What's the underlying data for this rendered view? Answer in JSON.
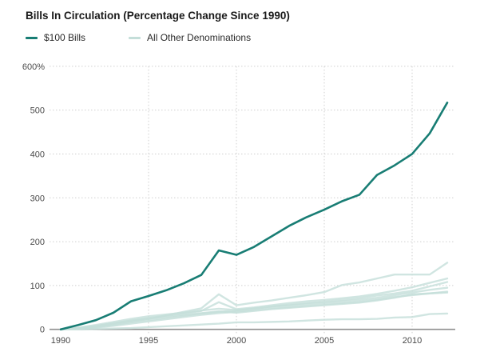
{
  "chart_data": {
    "type": "line",
    "title": "Bills In Circulation (Percentage Change Since 1990)",
    "xlabel": "",
    "ylabel": "",
    "xlim": [
      1990,
      2012.5
    ],
    "ylim": [
      0,
      600
    ],
    "grid": "dotted",
    "legend_position": "top-left",
    "xticks": [
      1990,
      1995,
      2000,
      2005,
      2010
    ],
    "yticks": [
      0,
      100,
      200,
      300,
      400,
      500,
      600
    ],
    "ytick_labels": [
      "0",
      "100",
      "200",
      "300",
      "400",
      "500",
      "600%"
    ],
    "x": [
      1990,
      1991,
      1992,
      1993,
      1994,
      1995,
      1996,
      1997,
      1998,
      1999,
      2000,
      2001,
      2002,
      2003,
      2004,
      2005,
      2006,
      2007,
      2008,
      2009,
      2010,
      2011,
      2012
    ],
    "legend": [
      {
        "label": "$100 Bills",
        "color": "#187d74"
      },
      {
        "label": "All Other Denominations",
        "color": "#c4ded9"
      }
    ],
    "series": [
      {
        "name": "$100 Bills",
        "color": "#187d74",
        "values": [
          0,
          10,
          21,
          38,
          64,
          76,
          89,
          105,
          124,
          180,
          170,
          188,
          212,
          236,
          256,
          273,
          292,
          307,
          352,
          374,
          400,
          447,
          517
        ]
      },
      {
        "name": "All Other Denominations",
        "color": "#c4ded9",
        "lines": [
          [
            0,
            2,
            6,
            12,
            18,
            24,
            32,
            40,
            48,
            80,
            55,
            61,
            66,
            72,
            78,
            85,
            101,
            107,
            116,
            125,
            125,
            125,
            152
          ],
          [
            0,
            3,
            8,
            14,
            20,
            26,
            31,
            36,
            42,
            62,
            46,
            50,
            55,
            60,
            64,
            67,
            71,
            75,
            81,
            88,
            96,
            106,
            116
          ],
          [
            0,
            2,
            5,
            10,
            16,
            21,
            26,
            31,
            36,
            40,
            43,
            47,
            52,
            56,
            60,
            63,
            67,
            71,
            77,
            82,
            88,
            98,
            108
          ],
          [
            0,
            4,
            10,
            17,
            24,
            30,
            34,
            38,
            43,
            47,
            44,
            48,
            52,
            55,
            58,
            61,
            64,
            67,
            72,
            78,
            84,
            90,
            95
          ],
          [
            0,
            1,
            4,
            8,
            13,
            18,
            23,
            28,
            33,
            37,
            40,
            44,
            48,
            51,
            54,
            57,
            60,
            63,
            68,
            74,
            78,
            82,
            86
          ],
          [
            0,
            2,
            7,
            14,
            20,
            25,
            29,
            33,
            37,
            41,
            38,
            42,
            46,
            49,
            52,
            55,
            58,
            61,
            66,
            72,
            80,
            82,
            84
          ],
          [
            0,
            0,
            1,
            2,
            3,
            5,
            7,
            9,
            11,
            13,
            16,
            16,
            17,
            18,
            20,
            22,
            23,
            23,
            24,
            27,
            28,
            35,
            36
          ]
        ]
      }
    ],
    "colors": {
      "grid": "#cfcfcf",
      "axis": "#8f8f8f",
      "tick_text": "#4a4a4a"
    }
  }
}
